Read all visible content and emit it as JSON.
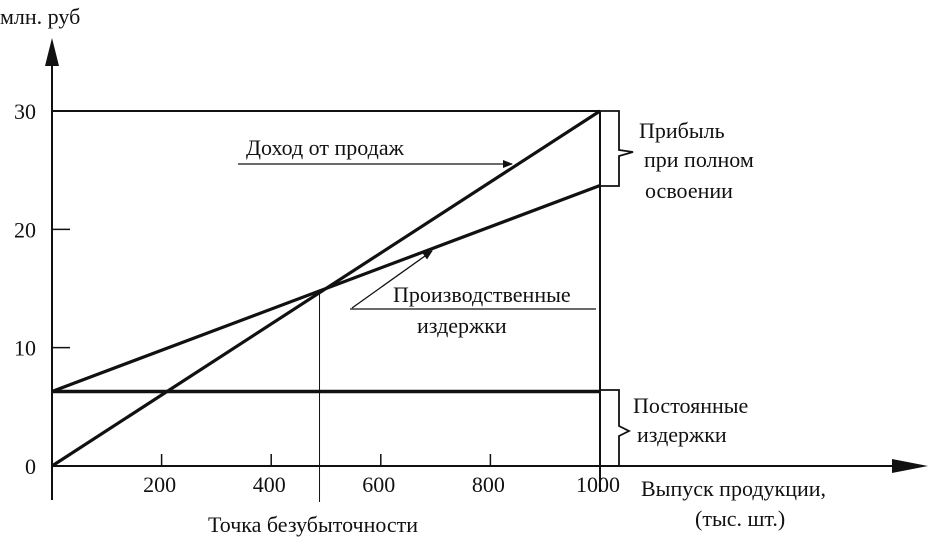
{
  "chart_data": {
    "type": "line",
    "ylabel": "млн. руб",
    "xlabel_lines": [
      "Выпуск   продукции,",
      "(тыс. шт.)"
    ],
    "xlim": [
      0,
      1000
    ],
    "ylim": [
      0,
      30
    ],
    "x_ticks": [
      200,
      400,
      600,
      800,
      1000
    ],
    "x_tick_labels": [
      "200",
      "400",
      "600",
      "800",
      "1000"
    ],
    "y_ticks": [
      0,
      10,
      20,
      30
    ],
    "y_tick_labels": [
      "0",
      "10",
      "20",
      "30"
    ],
    "grid": false,
    "series": [
      {
        "name": "Доход от продаж",
        "x": [
          0,
          1000
        ],
        "y": [
          0,
          30
        ]
      },
      {
        "name": "Производственные издержки",
        "x": [
          0,
          1000
        ],
        "y": [
          6.3,
          23.7
        ]
      },
      {
        "name": "Постоянные издержки",
        "x": [
          0,
          1000
        ],
        "y": [
          6.3,
          6.3
        ]
      }
    ],
    "break_even": {
      "x": 490,
      "y": 14.8,
      "label": "Точка безубыточности"
    },
    "annotations": {
      "revenue": [
        "Доход от продаж"
      ],
      "production_costs": [
        "Производственные",
        "издержки"
      ],
      "fixed_costs": [
        "Постоянные",
        "издержки"
      ],
      "profit": [
        "Прибыль",
        "при полном",
        "освоении"
      ]
    }
  }
}
